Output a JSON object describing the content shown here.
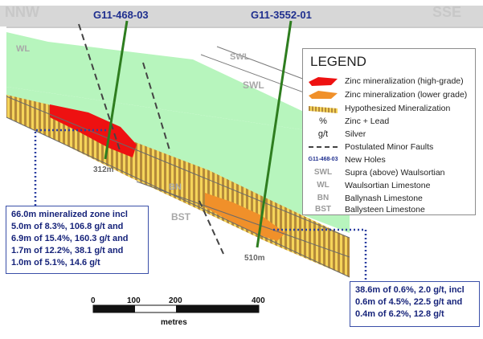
{
  "section": {
    "direction_left": "NNW",
    "direction_right": "SSE",
    "unit_labels": {
      "wl": "WL",
      "swl_upper": "SWL",
      "swl_lower": "SWL",
      "bn": "BN",
      "bst": "BST"
    },
    "drillholes": [
      {
        "id": "G11-468-03",
        "depth_label": "312m"
      },
      {
        "id": "G11-3552-01",
        "depth_label": "510m"
      }
    ]
  },
  "legend": {
    "title": "LEGEND",
    "items": [
      {
        "symbol": "",
        "text": "Zinc mineralization (high-grade)"
      },
      {
        "symbol": "",
        "text": "Zinc mineralization (lower grade)"
      },
      {
        "symbol": "",
        "text": "Hypothesized Mineralization"
      },
      {
        "symbol": "%",
        "text": "Zinc + Lead"
      },
      {
        "symbol": "g/t",
        "text": "Silver"
      },
      {
        "symbol": "",
        "text": "Postulated Minor Faults"
      },
      {
        "symbol": "G11-468-03",
        "text": "New Holes"
      },
      {
        "symbol": "SWL",
        "text": "Supra (above) Waulsortian"
      },
      {
        "symbol": "WL",
        "text": "Waulsortian Limestone"
      },
      {
        "symbol": "BN",
        "text": "Ballynash Limestone"
      },
      {
        "symbol": "BST",
        "text": "Ballysteen Limestone"
      }
    ]
  },
  "callout_left": {
    "lines": [
      "66.0m mineralized zone incl",
      "5.0m of 8.3%, 106.8 g/t and",
      "6.9m of 15.4%, 160.3 g/t and",
      "1.7m of 12.2%, 38.1 g/t and",
      "1.0m of 5.1%, 14.6 g/t"
    ]
  },
  "callout_right": {
    "lines": [
      "38.6m of 0.6%, 2.0 g/t, incl",
      "0.6m of 4.5%, 22.5 g/t and",
      "0.4m of 6.2%, 12.8 g/t"
    ]
  },
  "scale_bar": {
    "ticks": [
      "0",
      "100",
      "200",
      "400"
    ],
    "unit": "metres"
  },
  "colors": {
    "waulsortian_green": "#b7f5bd",
    "high_grade_red": "#ee1111",
    "lower_grade_orange": "#f0902a",
    "hatch_brown": "#b58a3a",
    "hatch_yellow": "#f5d45a",
    "drillhole_green": "#2e7d1f",
    "hole_label_blue": "#1f2f8f",
    "callout_blue": "#16237a",
    "ground_grey": "#d7d7d7"
  }
}
